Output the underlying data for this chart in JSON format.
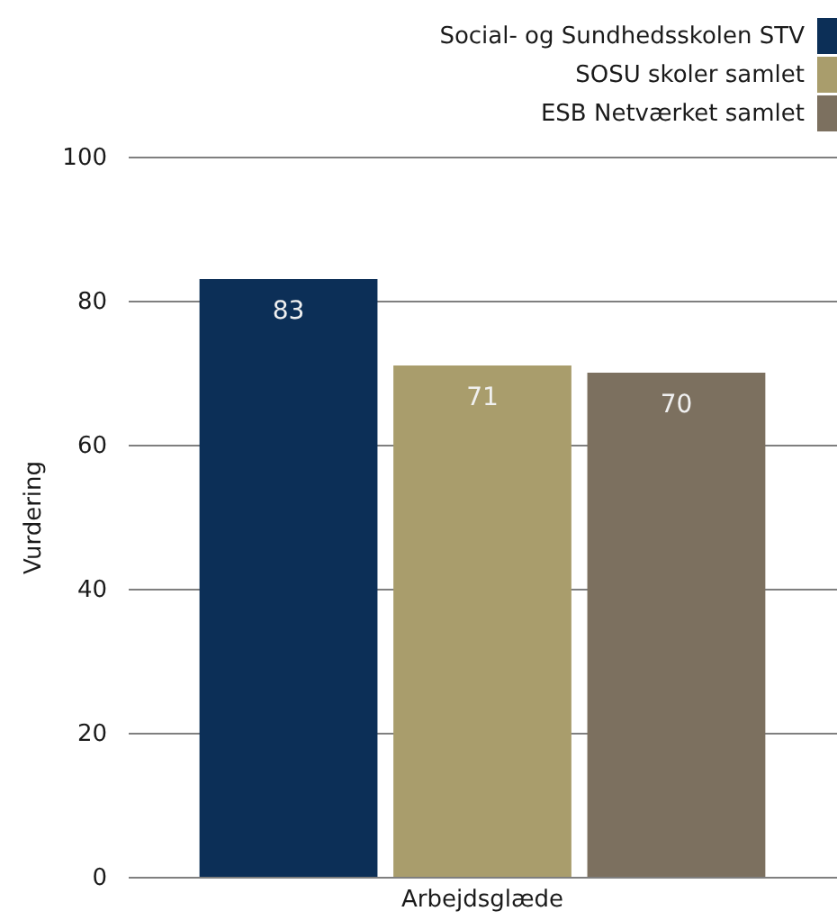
{
  "chart_data": {
    "type": "bar",
    "categories": [
      "Arbejdsglæde"
    ],
    "series": [
      {
        "name": "Social- og Sundhedsskolen STV",
        "color": "#0c2f57",
        "values": [
          83
        ]
      },
      {
        "name": "SOSU skoler samlet",
        "color": "#a99d6c",
        "values": [
          71
        ]
      },
      {
        "name": "ESB Netværket samlet",
        "color": "#7c705f",
        "values": [
          70
        ]
      }
    ],
    "ylabel": "Vurdering",
    "ylim": [
      0,
      100
    ],
    "yticks": [
      0,
      20,
      40,
      60,
      80,
      100
    ],
    "grid": "y",
    "legend": "top right",
    "data_labels": true
  }
}
